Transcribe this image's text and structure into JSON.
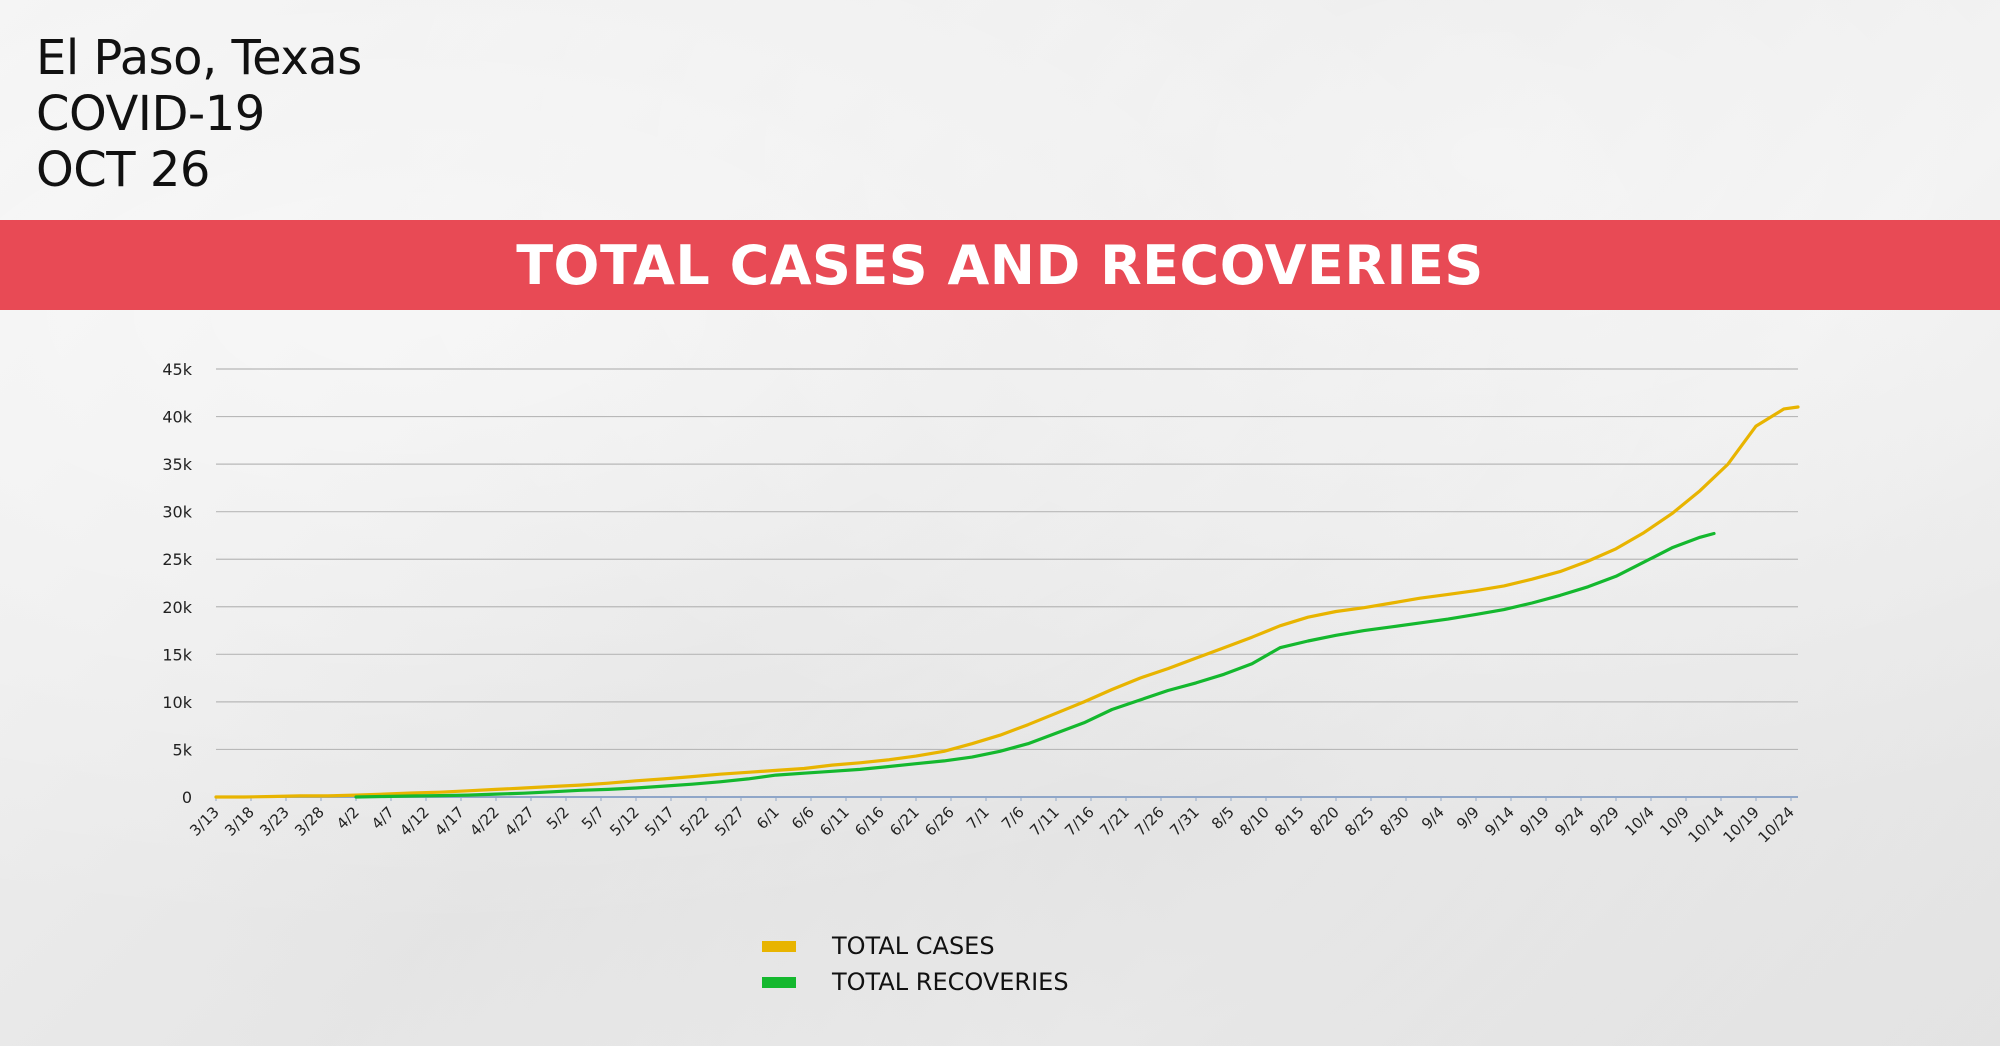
{
  "header": {
    "lines": [
      "El Paso, Texas",
      "COVID-19",
      "OCT 26"
    ],
    "banner": "TOTAL CASES AND RECOVERIES"
  },
  "colors": {
    "banner": "#e84a55",
    "cases": "#e8b400",
    "recoveries": "#14b82e",
    "grid": "#b8b8b8",
    "axis": "#8fa6c8"
  },
  "chart_data": {
    "type": "line",
    "title": "TOTAL CASES AND RECOVERIES",
    "xlabel": "",
    "ylabel": "",
    "ylim": [
      0,
      45000
    ],
    "yticks": [
      0,
      5000,
      10000,
      15000,
      20000,
      25000,
      30000,
      35000,
      40000,
      45000
    ],
    "ytick_labels": [
      "0",
      "5k",
      "10k",
      "15k",
      "20k",
      "25k",
      "30k",
      "35k",
      "40k",
      "45k"
    ],
    "categories": [
      "3/13",
      "3/18",
      "3/23",
      "3/28",
      "4/2",
      "4/7",
      "4/12",
      "4/17",
      "4/22",
      "4/27",
      "5/2",
      "5/7",
      "5/12",
      "5/17",
      "5/22",
      "5/27",
      "6/1",
      "6/6",
      "6/11",
      "6/16",
      "6/21",
      "6/26",
      "7/1",
      "7/6",
      "7/11",
      "7/16",
      "7/21",
      "7/26",
      "7/31",
      "8/5",
      "8/10",
      "8/15",
      "8/20",
      "8/25",
      "8/30",
      "9/4",
      "9/9",
      "9/14",
      "9/19",
      "9/24",
      "9/29",
      "10/4",
      "10/9",
      "10/14",
      "10/19",
      "10/24"
    ],
    "legend": "bottom-center",
    "series": [
      {
        "name": "TOTAL CASES",
        "color": "#e8b400",
        "points": [
          [
            0,
            0
          ],
          [
            4,
            0
          ],
          [
            8,
            50
          ],
          [
            12,
            120
          ],
          [
            16,
            120
          ],
          [
            20,
            200
          ],
          [
            24,
            300
          ],
          [
            28,
            420
          ],
          [
            32,
            500
          ],
          [
            36,
            650
          ],
          [
            40,
            800
          ],
          [
            44,
            950
          ],
          [
            48,
            1100
          ],
          [
            52,
            1250
          ],
          [
            56,
            1450
          ],
          [
            60,
            1700
          ],
          [
            64,
            1900
          ],
          [
            68,
            2150
          ],
          [
            72,
            2400
          ],
          [
            76,
            2600
          ],
          [
            80,
            2800
          ],
          [
            84,
            3000
          ],
          [
            88,
            3350
          ],
          [
            92,
            3600
          ],
          [
            96,
            3900
          ],
          [
            100,
            4300
          ],
          [
            104,
            4800
          ],
          [
            108,
            5600
          ],
          [
            112,
            6500
          ],
          [
            116,
            7600
          ],
          [
            120,
            8800
          ],
          [
            124,
            10000
          ],
          [
            128,
            11300
          ],
          [
            132,
            12500
          ],
          [
            136,
            13500
          ],
          [
            140,
            14600
          ],
          [
            144,
            15700
          ],
          [
            148,
            16800
          ],
          [
            152,
            18000
          ],
          [
            156,
            18900
          ],
          [
            160,
            19500
          ],
          [
            164,
            19900
          ],
          [
            168,
            20400
          ],
          [
            172,
            20900
          ],
          [
            176,
            21300
          ],
          [
            180,
            21700
          ],
          [
            184,
            22200
          ],
          [
            188,
            22900
          ],
          [
            192,
            23700
          ],
          [
            196,
            24800
          ],
          [
            200,
            26100
          ],
          [
            204,
            27800
          ],
          [
            208,
            29800
          ],
          [
            212,
            32200
          ],
          [
            216,
            35000
          ],
          [
            220,
            39000
          ],
          [
            224,
            40800
          ],
          [
            226,
            41000
          ]
        ]
      },
      {
        "name": "TOTAL RECOVERIES",
        "color": "#14b82e",
        "points": [
          [
            20,
            0
          ],
          [
            24,
            50
          ],
          [
            28,
            100
          ],
          [
            32,
            150
          ],
          [
            36,
            200
          ],
          [
            40,
            300
          ],
          [
            44,
            400
          ],
          [
            48,
            550
          ],
          [
            52,
            700
          ],
          [
            56,
            800
          ],
          [
            60,
            950
          ],
          [
            64,
            1150
          ],
          [
            68,
            1350
          ],
          [
            72,
            1600
          ],
          [
            76,
            1900
          ],
          [
            80,
            2300
          ],
          [
            84,
            2500
          ],
          [
            88,
            2700
          ],
          [
            92,
            2900
          ],
          [
            96,
            3200
          ],
          [
            100,
            3500
          ],
          [
            104,
            3800
          ],
          [
            108,
            4200
          ],
          [
            112,
            4800
          ],
          [
            116,
            5600
          ],
          [
            120,
            6700
          ],
          [
            124,
            7800
          ],
          [
            128,
            9200
          ],
          [
            132,
            10200
          ],
          [
            136,
            11200
          ],
          [
            140,
            12000
          ],
          [
            144,
            12900
          ],
          [
            148,
            14000
          ],
          [
            152,
            15700
          ],
          [
            156,
            16400
          ],
          [
            160,
            17000
          ],
          [
            164,
            17500
          ],
          [
            168,
            17900
          ],
          [
            172,
            18300
          ],
          [
            176,
            18700
          ],
          [
            180,
            19200
          ],
          [
            184,
            19700
          ],
          [
            188,
            20400
          ],
          [
            192,
            21200
          ],
          [
            196,
            22100
          ],
          [
            200,
            23200
          ],
          [
            204,
            24700
          ],
          [
            208,
            26200
          ],
          [
            212,
            27300
          ],
          [
            214,
            27700
          ]
        ]
      }
    ]
  }
}
